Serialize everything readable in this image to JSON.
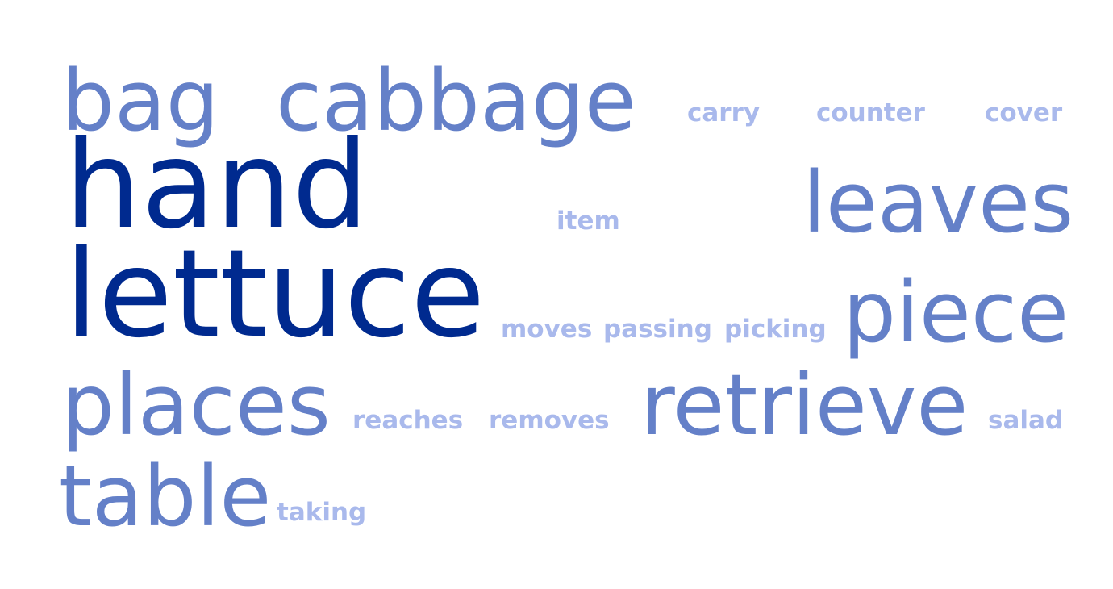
{
  "colors": {
    "dark": "#002a8f",
    "medium": "#6480c8",
    "light": "#a9b9ec"
  },
  "words": {
    "bag": "bag",
    "cabbage": "cabbage",
    "carry": "carry",
    "counter": "counter",
    "cover": "cover",
    "hand": "hand",
    "item": "item",
    "leaves": "leaves",
    "lettuce": "lettuce",
    "moves": "moves",
    "passing": "passing",
    "picking": "picking",
    "piece": "piece",
    "places": "places",
    "reaches": "reaches",
    "removes": "removes",
    "retrieve": "retrieve",
    "salad": "salad",
    "table": "table",
    "taking": "taking"
  }
}
